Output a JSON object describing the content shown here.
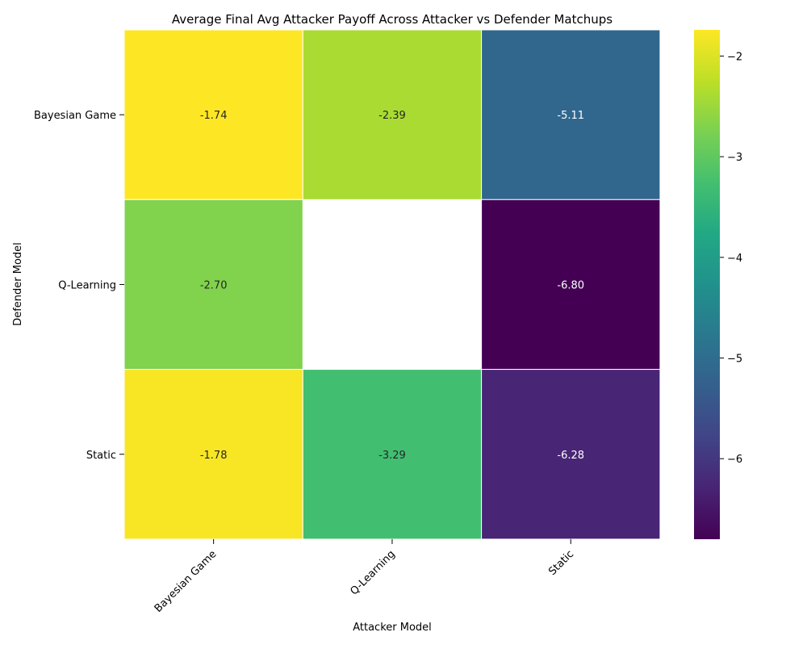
{
  "chart_data": {
    "type": "heatmap",
    "title": "Average Final Avg Attacker Payoff Across Attacker vs Defender Matchups",
    "xlabel": "Attacker Model",
    "ylabel": "Defender Model",
    "x_categories": [
      "Bayesian Game",
      "Q-Learning",
      "Static"
    ],
    "y_categories": [
      "Bayesian Game",
      "Q-Learning",
      "Static"
    ],
    "values": [
      [
        -1.74,
        -2.39,
        -5.11
      ],
      [
        -2.7,
        null,
        -6.8
      ],
      [
        -1.78,
        -3.29,
        -6.28
      ]
    ],
    "value_labels": [
      [
        "-1.74",
        "-2.39",
        "-5.11"
      ],
      [
        "-2.70",
        "",
        "-6.80"
      ],
      [
        "-1.78",
        "-3.29",
        "-6.28"
      ]
    ],
    "colormap": "viridis",
    "color_range": [
      -6.8,
      -1.74
    ],
    "colorbar_ticks": [
      -2,
      -3,
      -4,
      -5,
      -6
    ],
    "colorbar_tick_labels": [
      "−2",
      "−3",
      "−4",
      "−5",
      "−6"
    ],
    "grid": false,
    "legend": "colorbar-right"
  }
}
